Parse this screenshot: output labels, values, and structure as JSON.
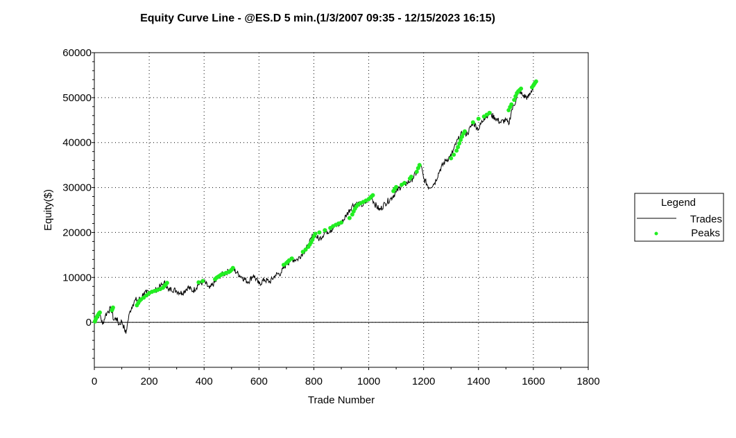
{
  "chart_data": {
    "type": "line",
    "title": "Equity Curve Line - @ES.D 5 min.(1/3/2007 09:35 - 12/15/2023 16:15)",
    "xlabel": "Trade Number",
    "ylabel": "Equity($)",
    "xlim": [
      0,
      1800
    ],
    "ylim": [
      -10000,
      60000
    ],
    "x_ticks": [
      0,
      200,
      400,
      600,
      800,
      1000,
      1200,
      1400,
      1600,
      1800
    ],
    "y_ticks": [
      0,
      10000,
      20000,
      30000,
      40000,
      50000,
      60000
    ],
    "grid": true,
    "legend": {
      "title": "Legend",
      "position": "right",
      "entries": [
        "Trades",
        "Peaks"
      ]
    },
    "colors": {
      "trades": "#000000",
      "peaks": "#22ee22"
    },
    "series": [
      {
        "name": "Trades",
        "x": [
          0,
          10,
          20,
          30,
          40,
          50,
          60,
          65,
          70,
          80,
          90,
          100,
          110,
          115,
          120,
          130,
          140,
          150,
          160,
          170,
          180,
          190,
          200,
          210,
          220,
          230,
          240,
          250,
          260,
          270,
          280,
          300,
          320,
          340,
          360,
          380,
          400,
          420,
          440,
          460,
          480,
          500,
          505,
          520,
          540,
          560,
          580,
          600,
          620,
          640,
          660,
          680,
          700,
          720,
          740,
          760,
          780,
          800,
          810,
          820,
          840,
          860,
          880,
          900,
          920,
          940,
          960,
          980,
          1000,
          1010,
          1020,
          1040,
          1060,
          1080,
          1100,
          1120,
          1140,
          1160,
          1180,
          1190,
          1200,
          1220,
          1240,
          1260,
          1280,
          1300,
          1320,
          1340,
          1360,
          1380,
          1400,
          1420,
          1440,
          1460,
          1480,
          1500,
          1510,
          1520,
          1540,
          1550,
          1560,
          1580,
          1590,
          1600,
          1610
        ],
        "y": [
          0,
          800,
          2000,
          -500,
          1500,
          2500,
          3000,
          2200,
          500,
          1000,
          -500,
          300,
          -1500,
          -2500,
          -500,
          2500,
          4000,
          5000,
          5000,
          5500,
          6500,
          6500,
          6800,
          7000,
          7000,
          7500,
          8000,
          8500,
          8800,
          7000,
          7500,
          7000,
          6500,
          7800,
          7000,
          8500,
          9000,
          7500,
          9000,
          10500,
          11000,
          11800,
          12000,
          11000,
          10000,
          9000,
          10500,
          8500,
          9500,
          9000,
          10500,
          11000,
          13000,
          14000,
          14000,
          15500,
          17000,
          20000,
          19000,
          18500,
          20000,
          20500,
          21500,
          22000,
          24000,
          26000,
          26500,
          26000,
          27500,
          28000,
          26500,
          25000,
          26500,
          27500,
          29000,
          30500,
          31000,
          32000,
          34000,
          35000,
          32000,
          30000,
          31000,
          34000,
          36000,
          37000,
          40000,
          42000,
          42000,
          44500,
          43000,
          45500,
          46500,
          45500,
          44500,
          45000,
          44000,
          47000,
          50000,
          51500,
          50500,
          50000,
          51000,
          52500,
          53500
        ]
      },
      {
        "name": "Peaks",
        "x": [
          2,
          5,
          8,
          11,
          14,
          17,
          20,
          64,
          66,
          68,
          155,
          160,
          165,
          170,
          180,
          190,
          200,
          210,
          220,
          230,
          240,
          250,
          255,
          260,
          265,
          380,
          395,
          440,
          445,
          450,
          455,
          460,
          465,
          470,
          480,
          490,
          495,
          500,
          505,
          690,
          700,
          705,
          710,
          720,
          760,
          770,
          780,
          785,
          790,
          795,
          800,
          805,
          820,
          840,
          860,
          870,
          880,
          890,
          900,
          930,
          940,
          945,
          950,
          955,
          960,
          970,
          980,
          990,
          1000,
          1005,
          1010,
          1015,
          1090,
          1095,
          1100,
          1120,
          1130,
          1150,
          1155,
          1175,
          1180,
          1185,
          1300,
          1310,
          1320,
          1325,
          1330,
          1335,
          1340,
          1345,
          1350,
          1380,
          1400,
          1420,
          1430,
          1440,
          1510,
          1515,
          1520,
          1530,
          1535,
          1540,
          1545,
          1550,
          1555,
          1595,
          1600,
          1603,
          1606,
          1610
        ],
        "y": [
          200,
          700,
          1100,
          1400,
          1700,
          2000,
          2200,
          2700,
          3000,
          3300,
          3800,
          4300,
          4800,
          5100,
          5500,
          6000,
          6500,
          6800,
          7000,
          7200,
          7400,
          7700,
          8100,
          8400,
          8800,
          8900,
          9200,
          9600,
          9900,
          10100,
          10300,
          10500,
          10700,
          10800,
          11000,
          11200,
          11400,
          11700,
          12100,
          12800,
          13200,
          13500,
          13800,
          14200,
          15700,
          16200,
          16800,
          17300,
          17800,
          18400,
          19100,
          19700,
          20000,
          20500,
          21000,
          21400,
          21700,
          22000,
          22200,
          23200,
          24000,
          24700,
          25300,
          25800,
          26200,
          26500,
          26800,
          27100,
          27400,
          27700,
          28000,
          28300,
          29200,
          29700,
          30100,
          30600,
          31000,
          32000,
          32400,
          33500,
          34300,
          35000,
          36500,
          37300,
          38200,
          39000,
          39800,
          40600,
          41300,
          42000,
          42500,
          44500,
          45300,
          45800,
          46200,
          46600,
          47200,
          47900,
          48500,
          49500,
          50300,
          51000,
          51400,
          51700,
          52000,
          52300,
          52700,
          53000,
          53300,
          53600
        ]
      }
    ]
  }
}
